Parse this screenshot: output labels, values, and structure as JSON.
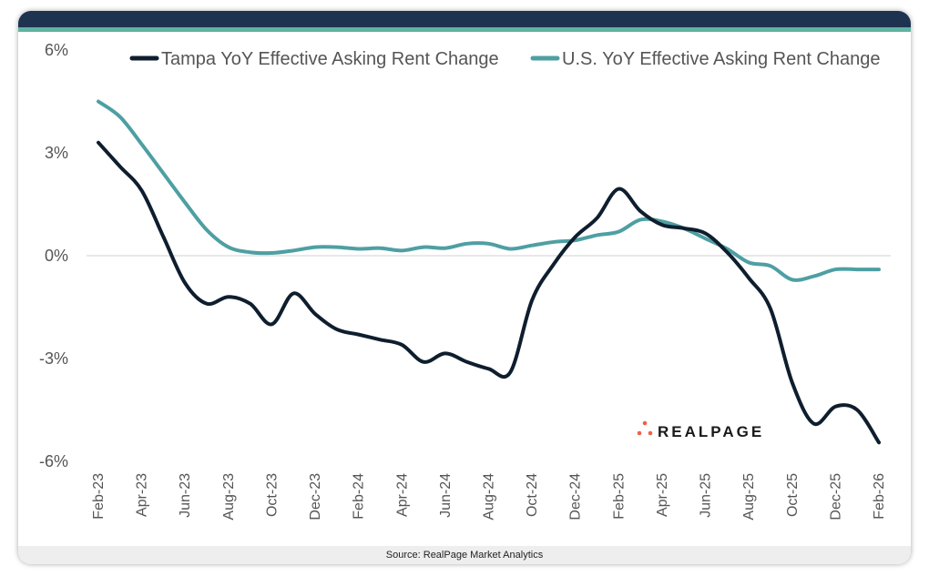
{
  "source": "Source: RealPage Market Analytics",
  "logo": "REALPAGE",
  "colors": {
    "header": "#1e3350",
    "accent": "#5fb3a0",
    "tampa": "#0f1e2e",
    "us": "#4e9fa3",
    "logo_dots": "#f0604a"
  },
  "chart_data": {
    "type": "line",
    "title": "",
    "xlabel": "",
    "ylabel": "",
    "ylim": [
      -6,
      6
    ],
    "yticks": [
      "6%",
      "3%",
      "0%",
      "-3%",
      "-6%"
    ],
    "ytick_values": [
      6,
      3,
      0,
      -3,
      -6
    ],
    "grid": false,
    "zero_line": true,
    "legend_position": "top",
    "x": [
      "Feb-23",
      "Mar-23",
      "Apr-23",
      "May-23",
      "Jun-23",
      "Jul-23",
      "Aug-23",
      "Sep-23",
      "Oct-23",
      "Nov-23",
      "Dec-23",
      "Jan-24",
      "Feb-24",
      "Mar-24",
      "Apr-24",
      "May-24",
      "Jun-24",
      "Jul-24",
      "Aug-24",
      "Sep-24",
      "Oct-24",
      "Nov-24",
      "Dec-24",
      "Jan-25",
      "Feb-25",
      "Mar-25",
      "Apr-25",
      "May-25",
      "Jun-25",
      "Jul-25",
      "Aug-25",
      "Sep-25",
      "Oct-25",
      "Nov-25",
      "Dec-25",
      "Jan-26",
      "Feb-26"
    ],
    "xticks": [
      "Feb-23",
      "Apr-23",
      "Jun-23",
      "Aug-23",
      "Oct-23",
      "Dec-23",
      "Feb-24",
      "Apr-24",
      "Jun-24",
      "Aug-24",
      "Oct-24",
      "Dec-24",
      "Feb-25",
      "Apr-25",
      "Jun-25",
      "Aug-25",
      "Oct-25",
      "Dec-25",
      "Feb-26"
    ],
    "series": [
      {
        "name": "Tampa YoY Effective Asking Rent Change",
        "color": "#0f1e2e",
        "values": [
          3.3,
          2.6,
          1.9,
          0.55,
          -0.8,
          -1.4,
          -1.2,
          -1.4,
          -2.0,
          -1.1,
          -1.7,
          -2.15,
          -2.3,
          -2.45,
          -2.6,
          -3.1,
          -2.85,
          -3.1,
          -3.3,
          -3.4,
          -1.3,
          -0.25,
          0.55,
          1.1,
          1.95,
          1.3,
          0.9,
          0.8,
          0.65,
          0.1,
          -0.65,
          -1.55,
          -3.7,
          -4.9,
          -4.4,
          -4.5,
          -5.45
        ]
      },
      {
        "name": "U.S. YoY Effective Asking Rent Change",
        "color": "#4e9fa3",
        "values": [
          4.5,
          4.05,
          3.25,
          2.4,
          1.55,
          0.75,
          0.25,
          0.1,
          0.08,
          0.15,
          0.25,
          0.25,
          0.2,
          0.22,
          0.15,
          0.25,
          0.22,
          0.35,
          0.35,
          0.2,
          0.3,
          0.4,
          0.45,
          0.6,
          0.7,
          1.05,
          1.0,
          0.8,
          0.5,
          0.2,
          -0.2,
          -0.3,
          -0.7,
          -0.6,
          -0.4,
          -0.4,
          -0.4
        ]
      }
    ]
  }
}
